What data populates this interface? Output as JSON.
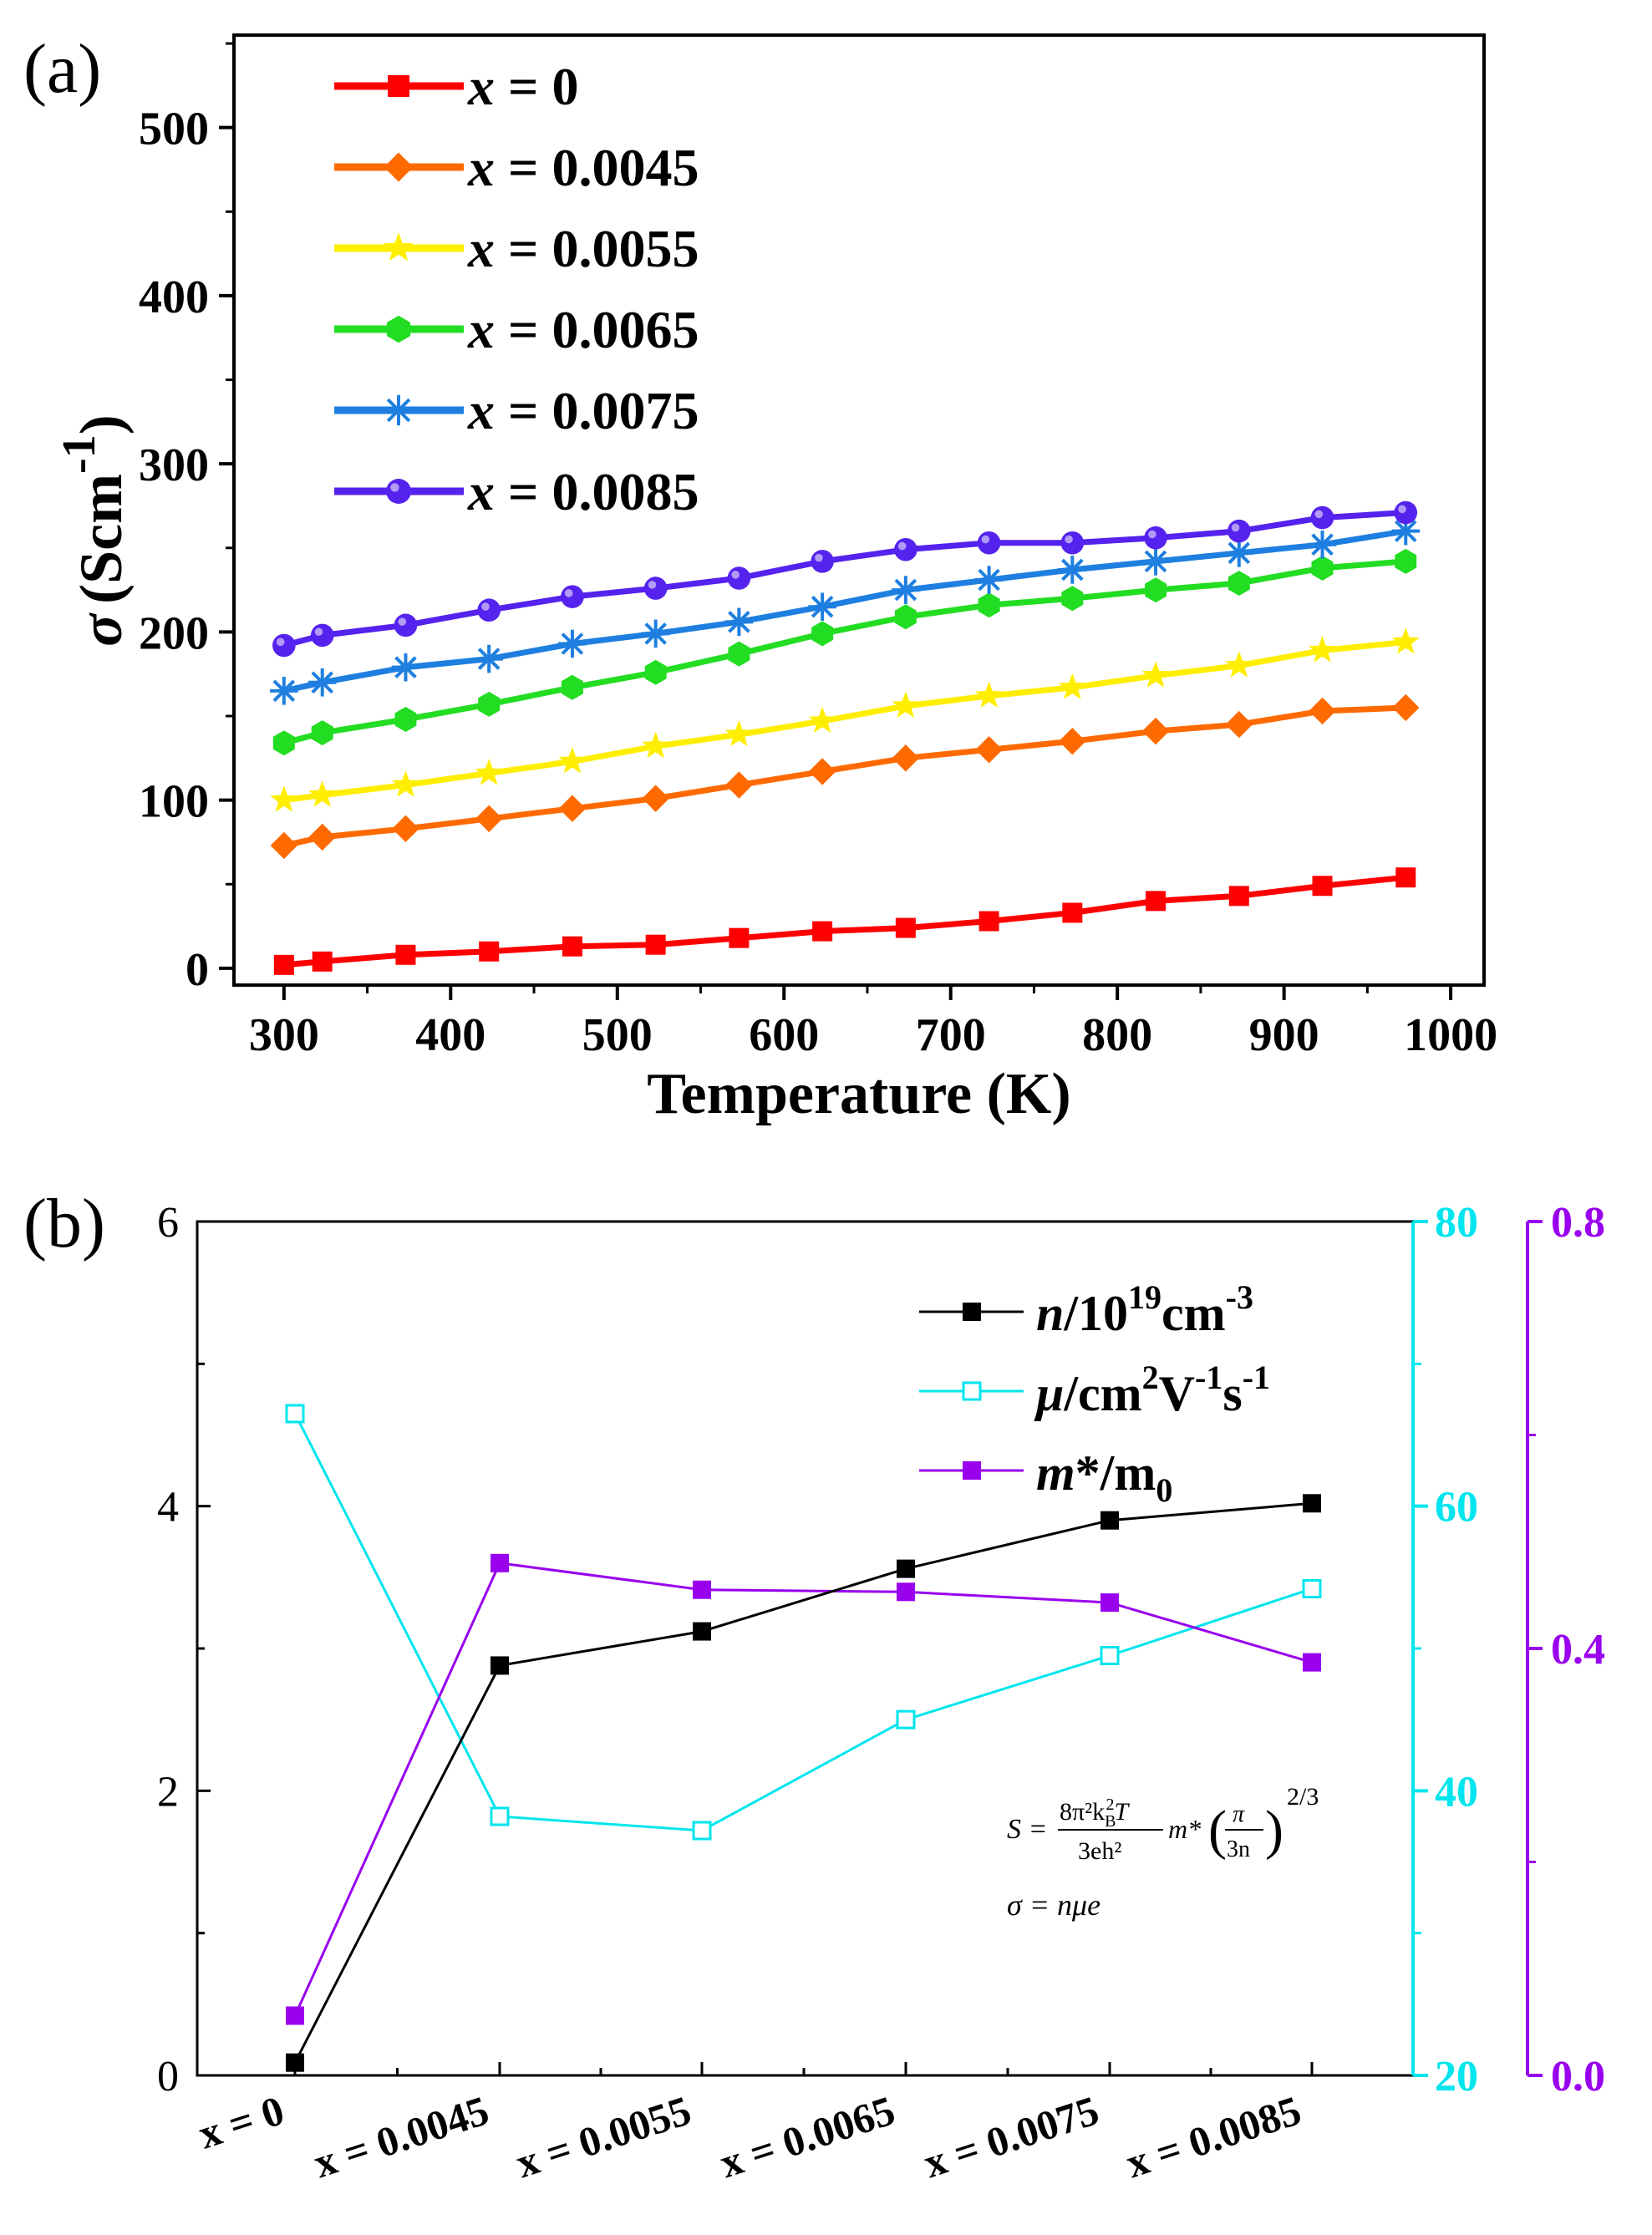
{
  "panels": {
    "a": {
      "label": "(a)"
    },
    "b": {
      "label": "(b)"
    }
  },
  "chart_data": [
    {
      "type": "line",
      "panel": "(a)",
      "title": "",
      "xlabel": "Temperature (K)",
      "ylabel_symbol": "σ",
      "ylabel_unit": "(Scm",
      "ylabel_exp": "-1",
      "ylabel_close": ")",
      "xlim": [
        270,
        1020
      ],
      "ylim": [
        -10,
        555
      ],
      "xticks": [
        300,
        400,
        500,
        600,
        700,
        800,
        900,
        1000
      ],
      "yticks": [
        0,
        100,
        200,
        300,
        400,
        500
      ],
      "x": [
        300,
        323,
        373,
        423,
        473,
        523,
        573,
        623,
        673,
        723,
        773,
        823,
        873,
        923,
        973
      ],
      "legend_location": "top-left",
      "series": [
        {
          "name": "x = 0",
          "legend_var": "x",
          "legend_value": " = 0",
          "color": "#ff0000",
          "marker": "square",
          "values": [
            2,
            4,
            8,
            10,
            13,
            14,
            18,
            22,
            24,
            28,
            33,
            40,
            43,
            49,
            54
          ]
        },
        {
          "name": "x = 0.0045",
          "legend_var": "x",
          "legend_value": " = 0.0045",
          "color": "#ff6a00",
          "marker": "diamond",
          "values": [
            73,
            78,
            83,
            89,
            95,
            101,
            109,
            117,
            125,
            130,
            135,
            141,
            145,
            153,
            155
          ]
        },
        {
          "name": "x = 0.0055",
          "legend_var": "x",
          "legend_value": " = 0.0055",
          "color": "#ffee00",
          "marker": "star",
          "values": [
            100,
            103,
            109,
            116,
            123,
            132,
            139,
            147,
            156,
            162,
            167,
            174,
            180,
            189,
            194
          ]
        },
        {
          "name": "x = 0.0065",
          "legend_var": "x",
          "legend_value": " = 0.0065",
          "color": "#22dd22",
          "marker": "hexagon",
          "values": [
            134,
            140,
            148,
            157,
            167,
            176,
            187,
            199,
            209,
            216,
            220,
            225,
            229,
            238,
            242
          ]
        },
        {
          "name": "x = 0.0075",
          "legend_var": "x",
          "legend_value": " = 0.0075",
          "color": "#1e7fe0",
          "marker": "asterisk",
          "values": [
            165,
            170,
            179,
            184,
            193,
            199,
            206,
            215,
            225,
            231,
            237,
            242,
            247,
            252,
            260
          ]
        },
        {
          "name": "x = 0.0085",
          "legend_var": "x",
          "legend_value": " = 0.0085",
          "color": "#5522ee",
          "marker": "sphere",
          "values": [
            192,
            198,
            204,
            213,
            221,
            226,
            232,
            242,
            249,
            253,
            253,
            256,
            260,
            268,
            271
          ]
        }
      ]
    },
    {
      "type": "line",
      "panel": "(b)",
      "categories": [
        "x = 0",
        "x = 0.0045",
        "x = 0.0055",
        "x = 0.0065",
        "x = 0.0075",
        "x = 0.0085"
      ],
      "axes": {
        "left": {
          "ylim": [
            0,
            6
          ],
          "ticks": [
            "0",
            "2",
            "4",
            "6"
          ],
          "tick_values": [
            0,
            2,
            4,
            6
          ],
          "minor": [
            1,
            3,
            5
          ],
          "color": "#000000"
        },
        "right1": {
          "ylim": [
            20,
            80
          ],
          "ticks": [
            "20",
            "40",
            "60",
            "80"
          ],
          "tick_values": [
            20,
            40,
            60,
            80
          ],
          "minor": [
            30,
            50,
            70
          ],
          "color": "#00e5ee"
        },
        "right2": {
          "ylim": [
            0,
            0.8
          ],
          "ticks": [
            "0.0",
            "0.4",
            "0.8"
          ],
          "tick_values": [
            0,
            0.4,
            0.8
          ],
          "minor": [
            0.2,
            0.6
          ],
          "color": "#9900ee"
        }
      },
      "legend_location": "top-right",
      "series": [
        {
          "name": "n/10^19cm^-3",
          "axis": "left",
          "color": "#000000",
          "marker": "filled-square",
          "legend_parts": {
            "a": "n",
            "b": "/10",
            "c": "19",
            "d": "cm",
            "e": "-3"
          },
          "values": [
            0.09,
            2.88,
            3.12,
            3.56,
            3.9,
            4.02
          ]
        },
        {
          "name": "μ/cm^2V^-1s^-1",
          "axis": "right1",
          "color": "#00e5ee",
          "marker": "open-square",
          "legend_parts": {
            "a": "μ",
            "b": "/cm",
            "c": "2",
            "d": "V",
            "e": "-1",
            "f": "s",
            "g": "-1"
          },
          "values": [
            66.5,
            38.2,
            37.2,
            45.0,
            49.5,
            54.2
          ]
        },
        {
          "name": "m*/m0",
          "axis": "right2",
          "color": "#9900ee",
          "marker": "filled-square",
          "legend_parts": {
            "a": "m",
            "b": "*/m",
            "c": "0"
          },
          "values": [
            0.056,
            0.48,
            0.455,
            0.453,
            0.443,
            0.387
          ]
        }
      ],
      "annotations": {
        "eq1_lhs": "S =",
        "eq1_num": "8π²k",
        "eq1_num_sub": "B",
        "eq1_num_sup": "2",
        "eq1_num_t": "T",
        "eq1_den": "3eh²",
        "eq1_m": "m*",
        "eq1_paren_num": "π",
        "eq1_paren_den": "3n",
        "eq1_exp": "2/3",
        "eq2": "σ = nμe"
      }
    }
  ]
}
